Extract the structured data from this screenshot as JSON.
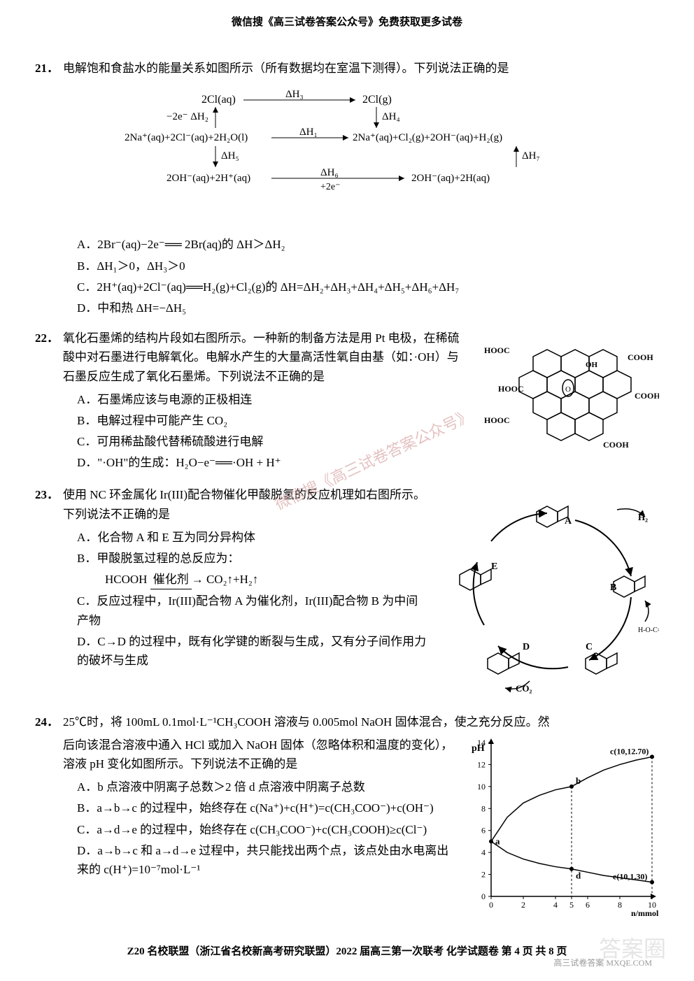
{
  "header": "微信搜《高三试卷答案公众号》免费获取更多试卷",
  "watermark_diag": "微信搜《高三试卷答案公众号》",
  "watermark_bottom": "答案圈",
  "sub_watermark": "高三试卷答案 MXQE.COM",
  "footer": "Z20 名校联盟（浙江省名校新高考研究联盟）2022 届高三第一次联考  化学试题卷   第 4 页  共 8 页",
  "q21": {
    "num": "21．",
    "text": "电解饱和食盐水的能量关系如图所示（所有数据均在室温下测得）。下列说法正确的是",
    "diagram": {
      "row1_left": "2Cl(aq)",
      "row1_arrow": "ΔH₃",
      "row1_right": "2Cl(g)",
      "row1_down_right": "ΔH₄",
      "row2_left_up": "−2e⁻ | ΔH₂",
      "row2_left": "2Na⁺(aq)+2Cl⁻(aq)+2H₂O(l)",
      "row2_arrow": "ΔH₁",
      "row2_right": "2Na⁺(aq)+Cl₂(g)+2OH⁻(aq)+H₂(g)",
      "row2_down_left": "ΔH₅",
      "row2_down_right": "ΔH₇",
      "row3_left": "2OH⁻(aq)+2H⁺(aq)",
      "row3_arrow": "ΔH₆",
      "row3_sub": "+2e⁻",
      "row3_right": "2OH⁻(aq)+2H(aq)"
    },
    "optA": "A．2Br⁻(aq)−2e⁻══ 2Br(aq)的 ΔH＞ΔH₂",
    "optB": "B．ΔH₁＞0，ΔH₃＞0",
    "optC": "C．2H⁺(aq)+2Cl⁻(aq)══H₂(g)+Cl₂(g)的 ΔH=ΔH₂+ΔH₃+ΔH₄+ΔH₅+ΔH₆+ΔH₇",
    "optD": "D．中和热 ΔH=−ΔH₅"
  },
  "q22": {
    "num": "22．",
    "text": "氧化石墨烯的结构片段如右图所示。一种新的制备方法是用 Pt 电极，在稀硫酸中对石墨进行电解氧化。电解水产生的大量高活性氧自由基（如：·OH）与石墨反应生成了氧化石墨烯。下列说法不正确的是",
    "optA": "A．石墨烯应该与电源的正极相连",
    "optB": "B．电解过程中可能产生 CO₂",
    "optC": "C．可用稀盐酸代替稀硫酸进行电解",
    "optD": "D．\"·OH\"的生成：H₂O−e⁻══·OH + H⁺",
    "diagram_labels": [
      "HOOC",
      "HOOC",
      "COOH",
      "COOH",
      "HOOC",
      "COOH",
      "OH"
    ]
  },
  "q23": {
    "num": "23．",
    "text": "使用 NC 环金属化 Ir(III)配合物催化甲酸脱氢的反应机理如右图所示。下列说法不正确的是",
    "optA": "A．化合物 A 和 E 互为同分异构体",
    "optB": "B．甲酸脱氢过程的总反应为：",
    "optB_formula_left": "HCOOH",
    "optB_formula_label": "催化剂",
    "optB_formula_right": "CO₂↑+H₂↑",
    "optC": "C．反应过程中，Ir(III)配合物 A 为催化剂，Ir(III)配合物 B 为中间产物",
    "optD": "D．C→D 的过程中，既有化学键的断裂与生成，又有分子间作用力的破坏与生成",
    "diagram_labels": [
      "A",
      "B",
      "C",
      "D",
      "E",
      "H₂",
      "CO₂"
    ]
  },
  "q24": {
    "num": "24．",
    "text_line1": "25℃时，将 100mL 0.1mol·L⁻¹CH₃COOH 溶液与 0.005mol NaOH 固体混合，使之充分反应。然",
    "text_line2": "后向该混合溶液中通入 HCl 或加入 NaOH 固体（忽略体积和温度的变化），溶液 pH 变化如图所示。下列说法不正确的是",
    "optA": "A．b 点溶液中阴离子总数＞2 倍 d 点溶液中阴离子总数",
    "optB": "B．a→b→c 的过程中，始终存在 c(Na⁺)+c(H⁺)=c(CH₃COO⁻)+c(OH⁻)",
    "optC": "C．a→d→e 的过程中，始终存在 c(CH₃COO⁻)+c(CH₃COOH)≥c(Cl⁻)",
    "optD": "D．a→b→c 和 a→d→e 过程中，共只能找出两个点，该点处由水电离出来的 c(H⁺)=10⁻⁷mol·L⁻¹",
    "chart": {
      "type": "line",
      "xlabel": "n/mmol",
      "ylabel": "pH",
      "xlim": [
        0,
        10
      ],
      "ylim": [
        0,
        14
      ],
      "xticks": [
        0,
        2,
        4,
        5,
        6,
        8,
        10
      ],
      "yticks": [
        0,
        2,
        4,
        6,
        8,
        10,
        12,
        14
      ],
      "points": {
        "a": {
          "x": 0,
          "y": 5,
          "label": "a"
        },
        "b": {
          "x": 5,
          "y": 10,
          "label": "b"
        },
        "c": {
          "x": 10,
          "y": 12.7,
          "label": "c(10,12.70)"
        },
        "d": {
          "x": 5,
          "y": 2.5,
          "label": "d"
        },
        "e": {
          "x": 10,
          "y": 1.3,
          "label": "e(10,1.30)"
        }
      },
      "series_top": [
        [
          0,
          5
        ],
        [
          1,
          7.2
        ],
        [
          2,
          8.5
        ],
        [
          3,
          9.2
        ],
        [
          4,
          9.7
        ],
        [
          5,
          10
        ],
        [
          6,
          10.8
        ],
        [
          7,
          11.5
        ],
        [
          8,
          12
        ],
        [
          9,
          12.4
        ],
        [
          10,
          12.7
        ]
      ],
      "series_bottom": [
        [
          0,
          5
        ],
        [
          1,
          4
        ],
        [
          2,
          3.4
        ],
        [
          3,
          3
        ],
        [
          4,
          2.7
        ],
        [
          5,
          2.5
        ],
        [
          6,
          2.2
        ],
        [
          7,
          1.9
        ],
        [
          8,
          1.7
        ],
        [
          9,
          1.5
        ],
        [
          10,
          1.3
        ]
      ],
      "line_color": "#000000",
      "background_color": "#ffffff",
      "axis_fontsize": 12,
      "label_fontsize": 14,
      "line_width": 1.5
    }
  }
}
